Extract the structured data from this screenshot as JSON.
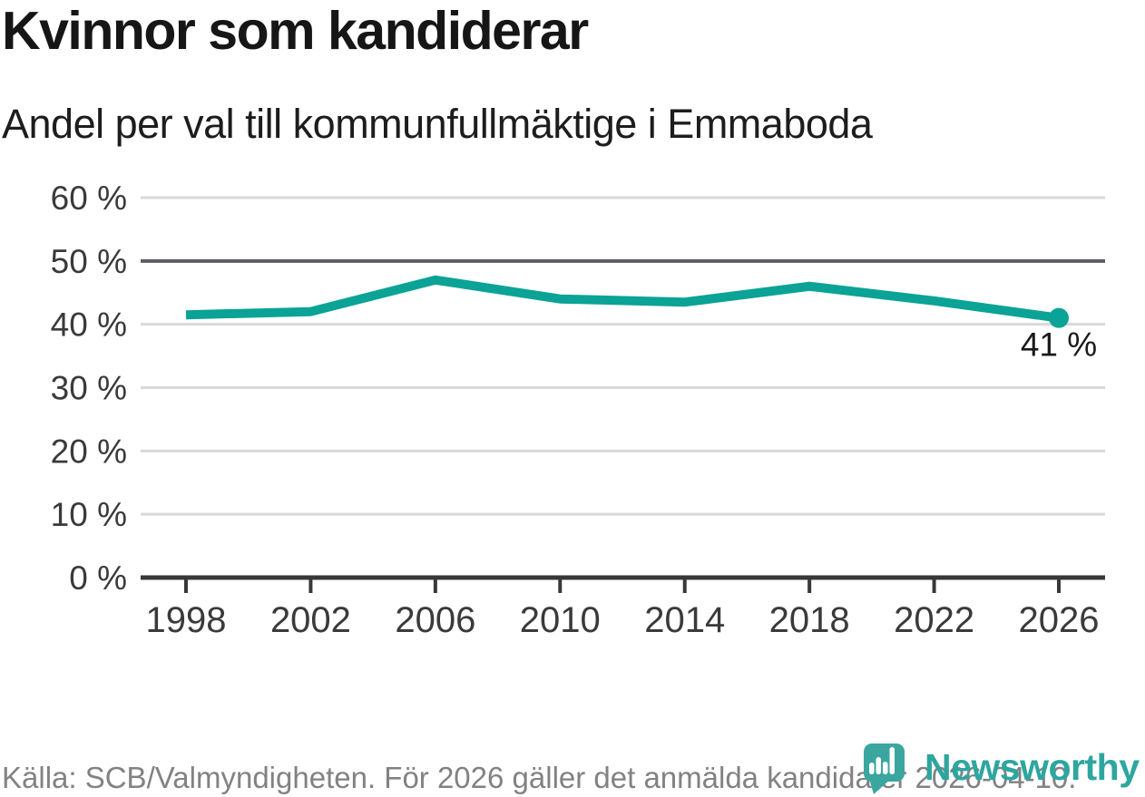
{
  "header": {
    "title": "Kvinnor som kandiderar",
    "subtitle": "Andel per val till kommunfullmäktige i Emmaboda"
  },
  "chart_data": {
    "type": "line",
    "title": "Kvinnor som kandiderar",
    "subtitle": "Andel per val till kommunfullmäktige i Emmaboda",
    "categories": [
      "1998",
      "2002",
      "2006",
      "2010",
      "2014",
      "2018",
      "2022",
      "2026"
    ],
    "values": [
      41.5,
      42,
      47,
      44,
      43.5,
      46,
      43.7,
      41
    ],
    "unit": "%",
    "ylim": [
      0,
      60
    ],
    "y_ticks": [
      0,
      10,
      20,
      30,
      40,
      50,
      60
    ],
    "y_tick_labels": [
      "0 %",
      "10 %",
      "20 %",
      "30 %",
      "40 %",
      "50 %",
      "60 %"
    ],
    "x_tick_labels": [
      "1998",
      "2002",
      "2006",
      "2010",
      "2014",
      "2018",
      "2022",
      "2026"
    ],
    "grid": "horizontal",
    "emphasized_gridline": 50,
    "end_label": "41 %",
    "legend": "none",
    "line_color": "#0aa396"
  },
  "footer": {
    "source": "Källa: SCB/Valmyndigheten. För 2026 gäller det anmälda kandidater 2026-04-10.",
    "brand": "Newsworthy"
  },
  "colors": {
    "accent": "#0aa396",
    "brand": "#2da69f",
    "grid": "#d9d9d9",
    "grid_emphasis": "#5c6066",
    "axis": "#383838",
    "axis_text": "#3a3a3a",
    "text": "#1a1a1a",
    "muted": "#828282"
  }
}
